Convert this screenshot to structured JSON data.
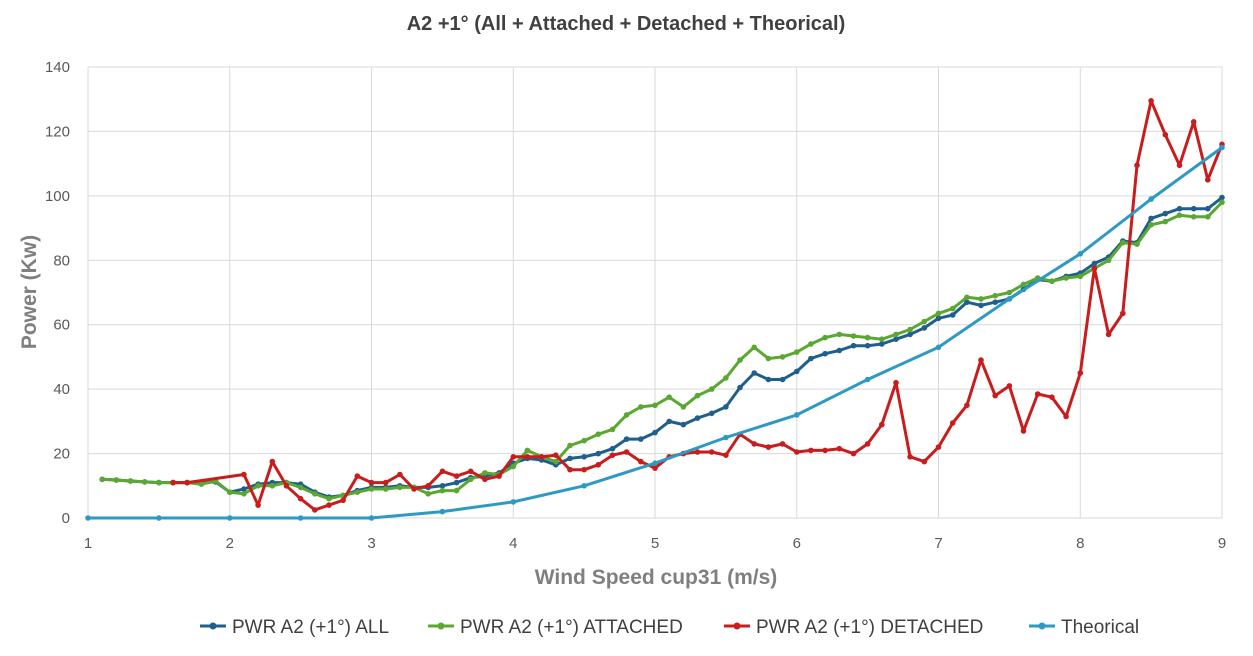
{
  "chart_data": {
    "type": "line",
    "title": "A2 +1° (All + Attached + Detached + Theorical)",
    "xlabel": "Wind Speed cup31 (m/s)",
    "ylabel": "Power (Kw)",
    "xlim": [
      1,
      9
    ],
    "ylim": [
      0,
      140
    ],
    "x_ticks": [
      "1",
      "2",
      "3",
      "4",
      "5",
      "6",
      "7",
      "8",
      "9"
    ],
    "y_ticks": [
      "0",
      "20",
      "40",
      "60",
      "80",
      "100",
      "120",
      "140"
    ],
    "grid": true,
    "legend_position": "bottom",
    "series": [
      {
        "name": "PWR A2 (+1°) ALL",
        "color": "#1f5f8b",
        "x": [
          1.1,
          1.2,
          1.3,
          1.4,
          1.5,
          1.6,
          1.7,
          1.8,
          1.9,
          2.0,
          2.1,
          2.2,
          2.3,
          2.4,
          2.5,
          2.6,
          2.7,
          2.8,
          2.9,
          3.0,
          3.1,
          3.2,
          3.3,
          3.4,
          3.5,
          3.6,
          3.7,
          3.8,
          3.9,
          4.0,
          4.1,
          4.2,
          4.3,
          4.4,
          4.5,
          4.6,
          4.7,
          4.8,
          4.9,
          5.0,
          5.1,
          5.2,
          5.3,
          5.4,
          5.5,
          5.6,
          5.7,
          5.8,
          5.9,
          6.0,
          6.1,
          6.2,
          6.3,
          6.4,
          6.5,
          6.6,
          6.7,
          6.8,
          6.9,
          7.0,
          7.1,
          7.2,
          7.3,
          7.4,
          7.5,
          7.6,
          7.7,
          7.8,
          7.9,
          8.0,
          8.1,
          8.2,
          8.3,
          8.4,
          8.5,
          8.6,
          8.7,
          8.8,
          8.9,
          9.0
        ],
        "y": [
          12,
          11.8,
          11.5,
          11.2,
          11,
          11,
          11,
          11,
          11.2,
          8,
          9,
          10.5,
          11,
          11,
          10.5,
          8,
          6.5,
          7,
          8.5,
          9.5,
          9.5,
          10,
          9.5,
          9.5,
          10,
          11,
          12.5,
          13,
          14,
          17,
          18.5,
          18,
          16.5,
          18.5,
          19,
          20,
          21.5,
          24.5,
          24.5,
          26.5,
          30,
          29,
          31,
          32.5,
          34.5,
          40.5,
          45,
          43,
          43,
          45.5,
          49.5,
          51,
          52,
          53.5,
          53.5,
          54,
          55.5,
          57,
          59,
          62,
          63,
          67,
          66,
          67,
          68,
          71,
          74,
          73.5,
          75,
          76,
          79,
          81,
          86,
          85.5,
          93,
          94.5,
          96,
          96,
          96,
          99.5
        ]
      },
      {
        "name": "PWR A2 (+1°) ATTACHED",
        "color": "#5aa832",
        "x": [
          1.1,
          1.2,
          1.3,
          1.4,
          1.5,
          1.6,
          1.7,
          1.8,
          1.9,
          2.0,
          2.1,
          2.2,
          2.3,
          2.4,
          2.5,
          2.6,
          2.7,
          2.8,
          2.9,
          3.0,
          3.1,
          3.2,
          3.3,
          3.4,
          3.5,
          3.6,
          3.7,
          3.8,
          3.9,
          4.0,
          4.1,
          4.2,
          4.3,
          4.4,
          4.5,
          4.6,
          4.7,
          4.8,
          4.9,
          5.0,
          5.1,
          5.2,
          5.3,
          5.4,
          5.5,
          5.6,
          5.7,
          5.8,
          5.9,
          6.0,
          6.1,
          6.2,
          6.3,
          6.4,
          6.5,
          6.6,
          6.7,
          6.8,
          6.9,
          7.0,
          7.1,
          7.2,
          7.3,
          7.4,
          7.5,
          7.6,
          7.7,
          7.8,
          7.9,
          8.0,
          8.1,
          8.2,
          8.3,
          8.4,
          8.5,
          8.6,
          8.7,
          8.8,
          8.9,
          9.0
        ],
        "y": [
          12,
          11.8,
          11.5,
          11.2,
          11,
          11,
          11,
          10.5,
          11.5,
          8,
          7.5,
          10,
          10,
          11,
          9.5,
          7.5,
          6,
          7,
          8,
          9,
          9,
          9.5,
          9.5,
          7.5,
          8.5,
          8.5,
          12,
          14,
          13.5,
          16,
          21,
          19,
          17.5,
          22.5,
          24,
          26,
          27.5,
          32,
          34.5,
          35,
          37.5,
          34.5,
          38,
          40,
          43.5,
          49,
          53,
          49.5,
          50,
          51.5,
          54,
          56,
          57,
          56.5,
          56,
          55.5,
          57,
          58.5,
          61,
          63.5,
          65,
          68.5,
          68,
          69,
          70,
          72.5,
          74.5,
          73.5,
          74.5,
          75,
          77.5,
          80,
          85.5,
          85,
          91,
          92,
          94,
          93.5,
          93.5,
          98
        ]
      },
      {
        "name": "PWR A2 (+1°) DETACHED",
        "color": "#c91d1d",
        "x": [
          1.6,
          1.7,
          2.1,
          2.2,
          2.3,
          2.4,
          2.5,
          2.6,
          2.7,
          2.8,
          2.9,
          3.0,
          3.1,
          3.2,
          3.3,
          3.4,
          3.5,
          3.6,
          3.7,
          3.8,
          3.9,
          4.0,
          4.1,
          4.2,
          4.3,
          4.4,
          4.5,
          4.6,
          4.7,
          4.8,
          4.9,
          5.0,
          5.1,
          5.2,
          5.3,
          5.4,
          5.5,
          5.6,
          5.7,
          5.8,
          5.9,
          6.0,
          6.1,
          6.2,
          6.3,
          6.4,
          6.5,
          6.6,
          6.7,
          6.8,
          6.9,
          7.0,
          7.1,
          7.2,
          7.3,
          7.4,
          7.5,
          7.6,
          7.7,
          7.8,
          7.9,
          8.0,
          8.1,
          8.2,
          8.3,
          8.4,
          8.5,
          8.6,
          8.7,
          8.8,
          8.9,
          9.0
        ],
        "y": [
          11,
          11,
          13.5,
          4,
          17.5,
          10,
          6,
          2.5,
          4,
          5.5,
          13,
          11,
          11,
          13.5,
          9,
          10,
          14.5,
          13,
          14.5,
          12,
          13,
          19,
          19,
          19,
          19.5,
          15,
          15,
          16.5,
          19.5,
          20.5,
          17.5,
          15.5,
          19,
          20,
          20.5,
          20.5,
          19.5,
          26,
          23,
          22,
          23,
          20.5,
          21,
          21,
          21.5,
          20,
          23,
          29,
          42,
          19,
          17.5,
          22,
          29.5,
          35,
          49,
          38,
          41,
          27,
          38.5,
          37.5,
          31.5,
          45,
          77.5,
          57,
          63.5,
          109.5,
          129.5,
          119,
          109.5,
          123,
          105,
          116
        ]
      },
      {
        "name": "Theorical",
        "color": "#2e9ac4",
        "x": [
          1,
          1.5,
          2,
          2.5,
          3,
          3.5,
          4,
          4.5,
          5,
          5.5,
          6,
          6.5,
          7,
          7.5,
          8,
          8.5,
          9
        ],
        "y": [
          0,
          0,
          0,
          0,
          0,
          2,
          5,
          10,
          17,
          25,
          32,
          43,
          53,
          68,
          82,
          99,
          115
        ]
      }
    ]
  }
}
